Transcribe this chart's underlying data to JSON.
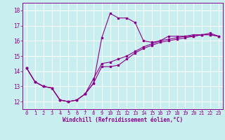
{
  "xlabel": "Windchill (Refroidissement éolien,°C)",
  "background_color": "#c8eef0",
  "line_color": "#8b008b",
  "grid_color": "#ffffff",
  "xlim": [
    -0.5,
    23.5
  ],
  "ylim": [
    11.5,
    18.5
  ],
  "xticks": [
    0,
    1,
    2,
    3,
    4,
    5,
    6,
    7,
    8,
    9,
    10,
    11,
    12,
    13,
    14,
    15,
    16,
    17,
    18,
    19,
    20,
    21,
    22,
    23
  ],
  "yticks": [
    12,
    13,
    14,
    15,
    16,
    17,
    18
  ],
  "curve1_x": [
    0,
    1,
    2,
    3,
    4,
    5,
    6,
    7,
    8,
    9,
    10,
    11,
    12,
    13,
    14,
    15,
    16,
    17,
    18,
    19,
    20,
    21,
    22,
    23
  ],
  "curve1_y": [
    14.2,
    13.3,
    13.0,
    12.9,
    12.1,
    12.0,
    12.1,
    12.5,
    13.2,
    16.2,
    17.8,
    17.5,
    17.5,
    17.2,
    16.0,
    15.9,
    16.0,
    16.3,
    16.3,
    16.3,
    16.3,
    16.4,
    16.4,
    16.3
  ],
  "curve2_x": [
    0,
    1,
    2,
    3,
    4,
    5,
    6,
    7,
    8,
    9,
    10,
    11,
    12,
    13,
    14,
    15,
    16,
    17,
    18,
    19,
    20,
    21,
    22,
    23
  ],
  "curve2_y": [
    14.2,
    13.3,
    13.0,
    12.9,
    12.1,
    12.0,
    12.1,
    12.5,
    13.2,
    14.3,
    14.3,
    14.4,
    14.8,
    15.2,
    15.5,
    15.7,
    15.9,
    16.0,
    16.1,
    16.2,
    16.3,
    16.4,
    16.4,
    16.3
  ],
  "curve3_x": [
    0,
    1,
    2,
    3,
    4,
    5,
    6,
    7,
    8,
    9,
    10,
    11,
    12,
    13,
    14,
    15,
    16,
    17,
    18,
    19,
    20,
    21,
    22,
    23
  ],
  "curve3_y": [
    14.2,
    13.3,
    13.0,
    12.9,
    12.1,
    12.0,
    12.1,
    12.5,
    13.5,
    14.5,
    14.6,
    14.8,
    15.0,
    15.3,
    15.6,
    15.8,
    16.0,
    16.1,
    16.2,
    16.3,
    16.4,
    16.4,
    16.5,
    16.3
  ],
  "tick_fontsize": 5,
  "xlabel_fontsize": 5.5,
  "marker_size": 1.8,
  "line_width": 0.8
}
